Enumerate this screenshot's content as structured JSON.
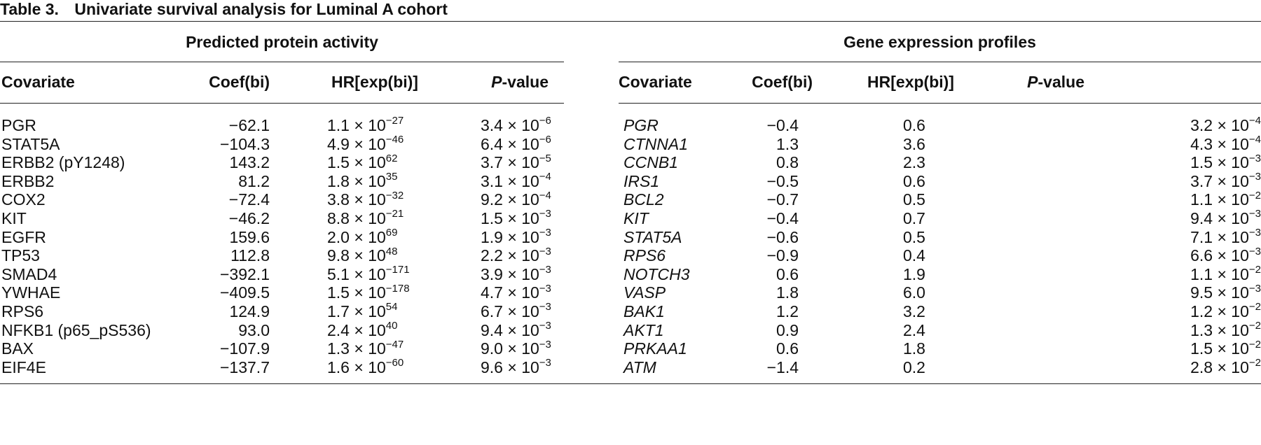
{
  "caption": {
    "label": "Table 3.",
    "text": "Univariate survival analysis for Luminal A cohort"
  },
  "groups": {
    "left": "Predicted protein activity",
    "right": "Gene expression profiles"
  },
  "columns": {
    "covariate": "Covariate",
    "coef": "Coef(bi)",
    "hr": "HR[exp(bi)]",
    "p_italic": "P",
    "p_rest": "-value"
  },
  "protein_rows": [
    {
      "covariate": "PGR",
      "coef": "−62.1",
      "hr_m": "1.1",
      "hr_e": "−27",
      "p_m": "3.4",
      "p_e": "−6"
    },
    {
      "covariate": "STAT5A",
      "coef": "−104.3",
      "hr_m": "4.9",
      "hr_e": "−46",
      "p_m": "6.4",
      "p_e": "−6"
    },
    {
      "covariate": "ERBB2 (pY1248)",
      "coef": "143.2",
      "hr_m": "1.5",
      "hr_e": "62",
      "p_m": "3.7",
      "p_e": "−5"
    },
    {
      "covariate": "ERBB2",
      "coef": "81.2",
      "hr_m": "1.8",
      "hr_e": "35",
      "p_m": "3.1",
      "p_e": "−4"
    },
    {
      "covariate": "COX2",
      "coef": "−72.4",
      "hr_m": "3.8",
      "hr_e": "−32",
      "p_m": "9.2",
      "p_e": "−4"
    },
    {
      "covariate": "KIT",
      "coef": "−46.2",
      "hr_m": "8.8",
      "hr_e": "−21",
      "p_m": "1.5",
      "p_e": "−3"
    },
    {
      "covariate": "EGFR",
      "coef": "159.6",
      "hr_m": "2.0",
      "hr_e": "69",
      "p_m": "1.9",
      "p_e": "−3"
    },
    {
      "covariate": "TP53",
      "coef": "112.8",
      "hr_m": "9.8",
      "hr_e": "48",
      "p_m": "2.2",
      "p_e": "−3"
    },
    {
      "covariate": "SMAD4",
      "coef": "−392.1",
      "hr_m": "5.1",
      "hr_e": "−171",
      "p_m": "3.9",
      "p_e": "−3"
    },
    {
      "covariate": "YWHAE",
      "coef": "−409.5",
      "hr_m": "1.5",
      "hr_e": "−178",
      "p_m": "4.7",
      "p_e": "−3"
    },
    {
      "covariate": "RPS6",
      "coef": "124.9",
      "hr_m": "1.7",
      "hr_e": "54",
      "p_m": "6.7",
      "p_e": "−3"
    },
    {
      "covariate": "NFKB1 (p65_pS536)",
      "coef": "93.0",
      "hr_m": "2.4",
      "hr_e": "40",
      "p_m": "9.4",
      "p_e": "−3"
    },
    {
      "covariate": "BAX",
      "coef": "−107.9",
      "hr_m": "1.3",
      "hr_e": "−47",
      "p_m": "9.0",
      "p_e": "−3"
    },
    {
      "covariate": "EIF4E",
      "coef": "−137.7",
      "hr_m": "1.6",
      "hr_e": "−60",
      "p_m": "9.6",
      "p_e": "−3"
    }
  ],
  "gene_rows": [
    {
      "covariate": "PGR",
      "coef": "−0.4",
      "hr": "0.6",
      "p_m": "3.2",
      "p_e": "−4"
    },
    {
      "covariate": "CTNNA1",
      "coef": "1.3",
      "hr": "3.6",
      "p_m": "4.3",
      "p_e": "−4"
    },
    {
      "covariate": "CCNB1",
      "coef": "0.8",
      "hr": "2.3",
      "p_m": "1.5",
      "p_e": "−3"
    },
    {
      "covariate": "IRS1",
      "coef": "−0.5",
      "hr": "0.6",
      "p_m": "3.7",
      "p_e": "−3"
    },
    {
      "covariate": "BCL2",
      "coef": "−0.7",
      "hr": "0.5",
      "p_m": "1.1",
      "p_e": "−2"
    },
    {
      "covariate": "KIT",
      "coef": "−0.4",
      "hr": "0.7",
      "p_m": "9.4",
      "p_e": "−3"
    },
    {
      "covariate": "STAT5A",
      "coef": "−0.6",
      "hr": "0.5",
      "p_m": "7.1",
      "p_e": "−3"
    },
    {
      "covariate": "RPS6",
      "coef": "−0.9",
      "hr": "0.4",
      "p_m": "6.6",
      "p_e": "−3"
    },
    {
      "covariate": "NOTCH3",
      "coef": "0.6",
      "hr": "1.9",
      "p_m": "1.1",
      "p_e": "−2"
    },
    {
      "covariate": "VASP",
      "coef": "1.8",
      "hr": "6.0",
      "p_m": "9.5",
      "p_e": "−3"
    },
    {
      "covariate": "BAK1",
      "coef": "1.2",
      "hr": "3.2",
      "p_m": "1.2",
      "p_e": "−2"
    },
    {
      "covariate": "AKT1",
      "coef": "0.9",
      "hr": "2.4",
      "p_m": "1.3",
      "p_e": "−2"
    },
    {
      "covariate": "PRKAA1",
      "coef": "0.6",
      "hr": "1.8",
      "p_m": "1.5",
      "p_e": "−2"
    },
    {
      "covariate": "ATM",
      "coef": "−1.4",
      "hr": "0.2",
      "p_m": "2.8",
      "p_e": "−2"
    }
  ]
}
